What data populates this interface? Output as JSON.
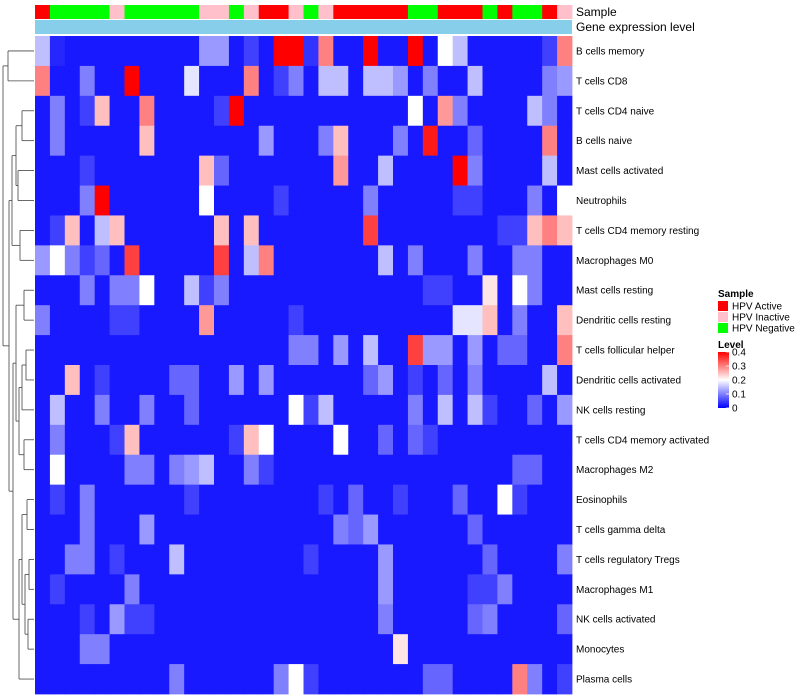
{
  "chart_data": {
    "type": "heatmap",
    "title": "",
    "annotation_tracks": [
      "Sample",
      "Gene expression level"
    ],
    "rows": [
      "B cells memory",
      "T cells CD8",
      "T cells CD4 naive",
      "B cells naive",
      "Mast cells activated",
      "Neutrophils",
      "T cells CD4 memory resting",
      "Macrophages M0",
      "Mast cells resting",
      "Dendritic cells resting",
      "T cells follicular helper",
      "Dendritic cells activated",
      "NK cells resting",
      "T cells CD4 memory activated",
      "Macrophages M2",
      "Eosinophils",
      "T cells gamma delta",
      "T cells regulatory  Tregs",
      "Macrophages M1",
      "NK cells activated",
      "Monocytes",
      "Plasma cells"
    ],
    "sample_groups": [
      "A",
      "N",
      "N",
      "N",
      "N",
      "I",
      "N",
      "N",
      "N",
      "N",
      "N",
      "I",
      "I",
      "N",
      "I",
      "A",
      "A",
      "I",
      "N",
      "I",
      "A",
      "A",
      "A",
      "A",
      "A",
      "N",
      "N",
      "A",
      "A",
      "A",
      "N",
      "A",
      "N",
      "N",
      "A",
      "I"
    ],
    "values": [
      [
        0.15,
        0.03,
        0.02,
        0.02,
        0.02,
        0.02,
        0.02,
        0.02,
        0.02,
        0.02,
        0.02,
        0.12,
        0.12,
        0.02,
        0.05,
        0.02,
        0.4,
        0.4,
        0.04,
        0.3,
        0.02,
        0.02,
        0.4,
        0.02,
        0.02,
        0.4,
        0.02,
        0.2,
        0.15,
        0.02,
        0.02,
        0.02,
        0.02,
        0.02,
        0.05,
        0.3
      ],
      [
        0.3,
        0.02,
        0.02,
        0.1,
        0.02,
        0.02,
        0.4,
        0.02,
        0.02,
        0.02,
        0.18,
        0.02,
        0.02,
        0.02,
        0.3,
        0.02,
        0.05,
        0.1,
        0.02,
        0.15,
        0.15,
        0.02,
        0.15,
        0.15,
        0.12,
        0.02,
        0.1,
        0.02,
        0.02,
        0.15,
        0.02,
        0.02,
        0.02,
        0.02,
        0.1,
        0.12
      ],
      [
        0.02,
        0.1,
        0.02,
        0.05,
        0.25,
        0.02,
        0.02,
        0.3,
        0.02,
        0.02,
        0.02,
        0.02,
        0.05,
        0.4,
        0.02,
        0.02,
        0.02,
        0.02,
        0.02,
        0.02,
        0.02,
        0.02,
        0.02,
        0.02,
        0.02,
        0.2,
        0.02,
        0.28,
        0.1,
        0.02,
        0.02,
        0.02,
        0.02,
        0.15,
        0.1,
        0.02
      ],
      [
        0.02,
        0.1,
        0.02,
        0.02,
        0.02,
        0.02,
        0.02,
        0.25,
        0.02,
        0.02,
        0.02,
        0.02,
        0.02,
        0.02,
        0.02,
        0.12,
        0.02,
        0.02,
        0.02,
        0.1,
        0.25,
        0.02,
        0.02,
        0.02,
        0.1,
        0.02,
        0.38,
        0.02,
        0.02,
        0.08,
        0.02,
        0.02,
        0.02,
        0.02,
        0.3,
        0.02
      ],
      [
        0.02,
        0.02,
        0.02,
        0.05,
        0.02,
        0.02,
        0.02,
        0.02,
        0.02,
        0.02,
        0.02,
        0.25,
        0.08,
        0.02,
        0.02,
        0.02,
        0.02,
        0.02,
        0.02,
        0.02,
        0.28,
        0.02,
        0.02,
        0.15,
        0.02,
        0.02,
        0.02,
        0.02,
        0.4,
        0.1,
        0.02,
        0.02,
        0.02,
        0.02,
        0.15,
        0.02
      ],
      [
        0.02,
        0.02,
        0.02,
        0.1,
        0.4,
        0.02,
        0.02,
        0.02,
        0.02,
        0.02,
        0.02,
        0.2,
        0.02,
        0.02,
        0.02,
        0.02,
        0.05,
        0.02,
        0.02,
        0.02,
        0.02,
        0.02,
        0.1,
        0.02,
        0.02,
        0.02,
        0.02,
        0.02,
        0.05,
        0.05,
        0.02,
        0.02,
        0.02,
        0.1,
        0.02,
        0.2
      ],
      [
        0.02,
        0.05,
        0.25,
        0.02,
        0.15,
        0.25,
        0.02,
        0.02,
        0.02,
        0.02,
        0.02,
        0.02,
        0.25,
        0.02,
        0.25,
        0.02,
        0.02,
        0.02,
        0.02,
        0.02,
        0.02,
        0.02,
        0.35,
        0.02,
        0.02,
        0.02,
        0.02,
        0.02,
        0.02,
        0.02,
        0.02,
        0.05,
        0.05,
        0.25,
        0.3,
        0.25
      ],
      [
        0.12,
        0.2,
        0.1,
        0.05,
        0.08,
        0.02,
        0.35,
        0.02,
        0.02,
        0.02,
        0.02,
        0.02,
        0.35,
        0.02,
        0.15,
        0.3,
        0.02,
        0.02,
        0.02,
        0.02,
        0.02,
        0.02,
        0.02,
        0.15,
        0.02,
        0.1,
        0.02,
        0.02,
        0.02,
        0.1,
        0.02,
        0.02,
        0.1,
        0.1,
        0.02,
        0.02
      ],
      [
        0.02,
        0.02,
        0.02,
        0.1,
        0.02,
        0.1,
        0.1,
        0.2,
        0.02,
        0.02,
        0.15,
        0.05,
        0.1,
        0.02,
        0.02,
        0.02,
        0.02,
        0.02,
        0.02,
        0.02,
        0.02,
        0.02,
        0.02,
        0.02,
        0.02,
        0.02,
        0.05,
        0.05,
        0.02,
        0.02,
        0.22,
        0.02,
        0.2,
        0.1,
        0.02,
        0.02
      ],
      [
        0.1,
        0.02,
        0.02,
        0.02,
        0.02,
        0.05,
        0.05,
        0.02,
        0.02,
        0.02,
        0.02,
        0.28,
        0.02,
        0.02,
        0.02,
        0.02,
        0.02,
        0.05,
        0.02,
        0.02,
        0.02,
        0.02,
        0.02,
        0.02,
        0.02,
        0.02,
        0.02,
        0.02,
        0.18,
        0.18,
        0.25,
        0.02,
        0.1,
        0.02,
        0.02,
        0.25
      ],
      [
        0.02,
        0.02,
        0.02,
        0.02,
        0.02,
        0.02,
        0.02,
        0.02,
        0.02,
        0.02,
        0.02,
        0.02,
        0.02,
        0.02,
        0.02,
        0.02,
        0.02,
        0.1,
        0.1,
        0.02,
        0.12,
        0.02,
        0.15,
        0.02,
        0.02,
        0.35,
        0.12,
        0.12,
        0.02,
        0.12,
        0.02,
        0.08,
        0.08,
        0.02,
        0.02,
        0.3
      ],
      [
        0.02,
        0.02,
        0.25,
        0.02,
        0.05,
        0.02,
        0.02,
        0.02,
        0.02,
        0.08,
        0.08,
        0.02,
        0.02,
        0.12,
        0.02,
        0.12,
        0.02,
        0.02,
        0.02,
        0.02,
        0.02,
        0.02,
        0.08,
        0.12,
        0.02,
        0.05,
        0.02,
        0.08,
        0.02,
        0.1,
        0.02,
        0.02,
        0.02,
        0.02,
        0.15,
        0.02
      ],
      [
        0.02,
        0.15,
        0.02,
        0.02,
        0.1,
        0.02,
        0.02,
        0.1,
        0.02,
        0.02,
        0.08,
        0.02,
        0.02,
        0.02,
        0.02,
        0.02,
        0.02,
        0.2,
        0.05,
        0.15,
        0.02,
        0.02,
        0.02,
        0.02,
        0.02,
        0.1,
        0.02,
        0.15,
        0.02,
        0.15,
        0.05,
        0.02,
        0.02,
        0.08,
        0.02,
        0.12
      ],
      [
        0.02,
        0.1,
        0.02,
        0.02,
        0.02,
        0.05,
        0.25,
        0.02,
        0.02,
        0.02,
        0.02,
        0.02,
        0.02,
        0.05,
        0.25,
        0.2,
        0.02,
        0.02,
        0.02,
        0.02,
        0.2,
        0.02,
        0.02,
        0.08,
        0.02,
        0.08,
        0.05,
        0.02,
        0.02,
        0.02,
        0.02,
        0.02,
        0.02,
        0.02,
        0.02,
        0.02
      ],
      [
        0.02,
        0.2,
        0.02,
        0.02,
        0.02,
        0.02,
        0.1,
        0.1,
        0.02,
        0.1,
        0.12,
        0.15,
        0.02,
        0.02,
        0.1,
        0.05,
        0.02,
        0.02,
        0.02,
        0.02,
        0.02,
        0.02,
        0.02,
        0.02,
        0.02,
        0.02,
        0.02,
        0.02,
        0.02,
        0.02,
        0.02,
        0.02,
        0.08,
        0.08,
        0.02,
        0.02
      ],
      [
        0.02,
        0.05,
        0.02,
        0.1,
        0.02,
        0.02,
        0.02,
        0.02,
        0.02,
        0.02,
        0.05,
        0.02,
        0.02,
        0.02,
        0.02,
        0.02,
        0.02,
        0.02,
        0.02,
        0.05,
        0.02,
        0.08,
        0.02,
        0.02,
        0.05,
        0.02,
        0.02,
        0.02,
        0.08,
        0.02,
        0.02,
        0.2,
        0.05,
        0.02,
        0.02,
        0.02
      ],
      [
        0.02,
        0.02,
        0.02,
        0.1,
        0.02,
        0.02,
        0.02,
        0.12,
        0.02,
        0.02,
        0.02,
        0.02,
        0.02,
        0.02,
        0.02,
        0.02,
        0.02,
        0.02,
        0.02,
        0.02,
        0.1,
        0.08,
        0.12,
        0.02,
        0.02,
        0.02,
        0.02,
        0.02,
        0.02,
        0.08,
        0.02,
        0.02,
        0.02,
        0.02,
        0.02,
        0.02
      ],
      [
        0.02,
        0.02,
        0.1,
        0.1,
        0.02,
        0.05,
        0.02,
        0.02,
        0.02,
        0.15,
        0.02,
        0.02,
        0.02,
        0.02,
        0.02,
        0.02,
        0.02,
        0.02,
        0.05,
        0.02,
        0.02,
        0.02,
        0.02,
        0.12,
        0.02,
        0.02,
        0.02,
        0.02,
        0.02,
        0.02,
        0.08,
        0.02,
        0.02,
        0.02,
        0.02,
        0.1
      ],
      [
        0.02,
        0.05,
        0.02,
        0.02,
        0.02,
        0.02,
        0.1,
        0.02,
        0.02,
        0.02,
        0.02,
        0.02,
        0.02,
        0.02,
        0.02,
        0.02,
        0.02,
        0.02,
        0.02,
        0.02,
        0.02,
        0.02,
        0.02,
        0.12,
        0.02,
        0.02,
        0.02,
        0.02,
        0.02,
        0.05,
        0.05,
        0.1,
        0.02,
        0.02,
        0.02,
        0.02
      ],
      [
        0.02,
        0.02,
        0.02,
        0.05,
        0.02,
        0.12,
        0.05,
        0.05,
        0.02,
        0.02,
        0.02,
        0.02,
        0.02,
        0.02,
        0.02,
        0.02,
        0.02,
        0.02,
        0.02,
        0.02,
        0.02,
        0.02,
        0.02,
        0.1,
        0.02,
        0.02,
        0.02,
        0.02,
        0.02,
        0.08,
        0.1,
        0.02,
        0.02,
        0.02,
        0.02,
        0.08
      ],
      [
        0.02,
        0.02,
        0.02,
        0.1,
        0.1,
        0.02,
        0.02,
        0.02,
        0.02,
        0.02,
        0.02,
        0.02,
        0.02,
        0.02,
        0.02,
        0.02,
        0.02,
        0.02,
        0.02,
        0.02,
        0.02,
        0.02,
        0.02,
        0.02,
        0.22,
        0.02,
        0.02,
        0.02,
        0.02,
        0.02,
        0.02,
        0.02,
        0.02,
        0.02,
        0.02,
        0.02
      ],
      [
        0.02,
        0.02,
        0.02,
        0.02,
        0.02,
        0.02,
        0.02,
        0.02,
        0.02,
        0.1,
        0.02,
        0.02,
        0.02,
        0.02,
        0.02,
        0.02,
        0.1,
        0.2,
        0.05,
        0.02,
        0.02,
        0.02,
        0.02,
        0.02,
        0.02,
        0.02,
        0.08,
        0.08,
        0.02,
        0.02,
        0.02,
        0.02,
        0.3,
        0.1,
        0.02,
        0.05
      ]
    ],
    "color_scale": {
      "min": 0,
      "max": 0.4,
      "low": "#0000ff",
      "mid": "#ffffff",
      "high": "#ff0000",
      "mid_value": 0.2
    },
    "legend": {
      "sample_title": "Sample",
      "sample_entries": [
        {
          "key": "A",
          "label": "HPV Active",
          "color": "#ff0000"
        },
        {
          "key": "I",
          "label": "HPV Inactive",
          "color": "#ffc0cb"
        },
        {
          "key": "N",
          "label": "HPV Negative",
          "color": "#00ff00"
        }
      ],
      "level_title": "Level",
      "level_ticks": [
        "0.4",
        "0.3",
        "0.2",
        "0.1",
        "0"
      ],
      "level_tick_values": [
        0.4,
        0.3,
        0.2,
        0.1,
        0
      ]
    },
    "expression_bar_color": "#87ceeb",
    "dendrogram": true,
    "legend_position": "right"
  }
}
